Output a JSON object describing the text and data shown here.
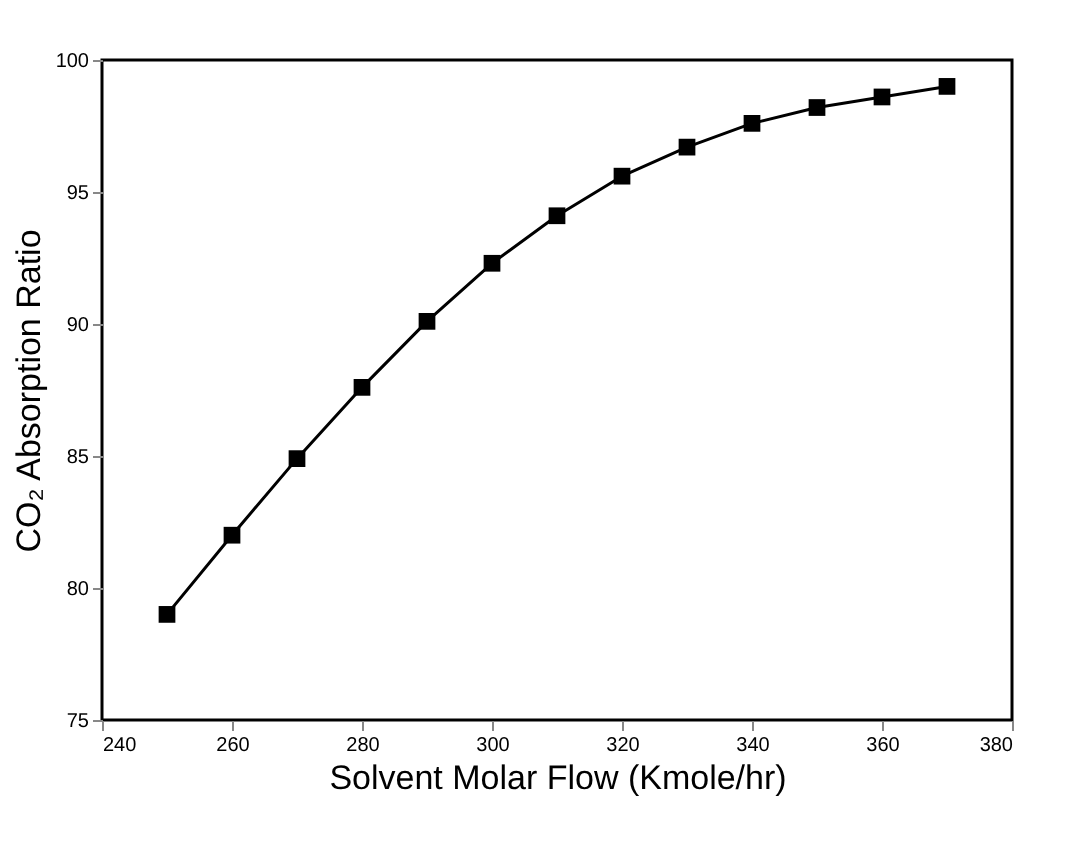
{
  "chart_data": {
    "type": "line",
    "xlabel": "Solvent Molar Flow (Kmole/hr)",
    "ylabel": "CO₂ Absorption Ratio",
    "x": [
      250,
      260,
      270,
      280,
      290,
      300,
      310,
      320,
      330,
      340,
      350,
      360,
      370
    ],
    "series": [
      {
        "color": "#000000",
        "values": [
          79.0,
          82.0,
          84.9,
          87.6,
          90.1,
          92.3,
          94.1,
          95.6,
          96.7,
          97.6,
          98.2,
          98.6,
          99.0
        ]
      }
    ],
    "xlim": [
      240,
      380
    ],
    "xticks": [
      240,
      260,
      280,
      300,
      320,
      340,
      360,
      380
    ],
    "ylim": [
      75,
      100
    ],
    "yticks": [
      75,
      80,
      85,
      90,
      95,
      100
    ],
    "grid": false,
    "marker": "square",
    "line_style": "solid"
  }
}
